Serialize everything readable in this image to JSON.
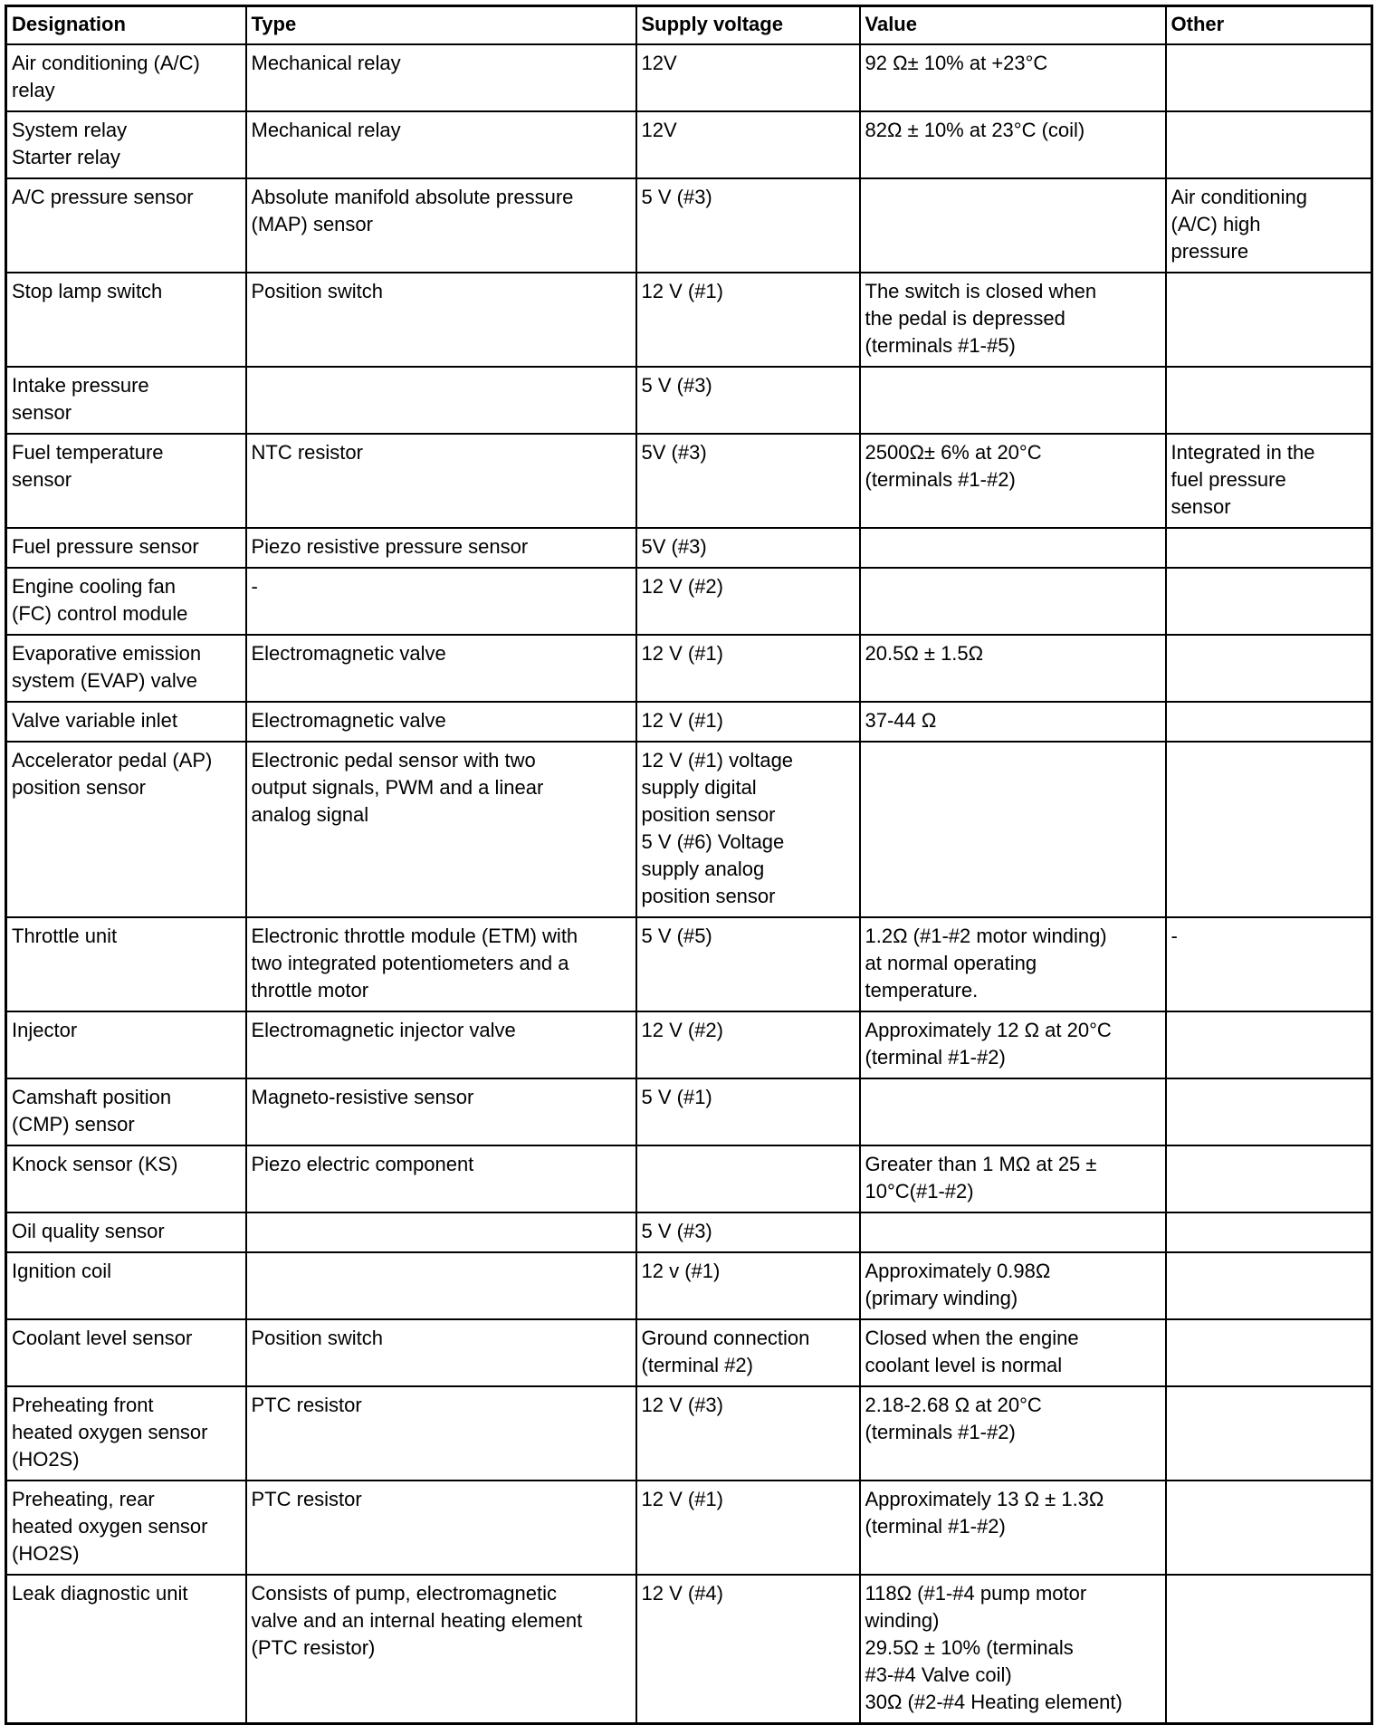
{
  "headers": [
    "Designation",
    "Type",
    "Supply voltage",
    "Value",
    "Other"
  ],
  "rows": [
    [
      "Air conditioning (A/C)\nrelay",
      "Mechanical relay",
      "12V",
      "92 Ω± 10% at +23°C",
      ""
    ],
    [
      "System relay\nStarter relay",
      "Mechanical relay",
      "12V",
      "82Ω ± 10% at 23°C (coil)",
      ""
    ],
    [
      "A/C pressure sensor",
      "Absolute manifold absolute pressure\n(MAP) sensor",
      "5 V (#3)",
      "",
      "Air conditioning\n(A/C) high\npressure"
    ],
    [
      "Stop lamp switch",
      "Position switch",
      "12 V (#1)",
      "The switch is closed when\nthe pedal is depressed\n(terminals #1-#5)",
      ""
    ],
    [
      "Intake pressure\nsensor",
      "",
      "5 V (#3)",
      "",
      ""
    ],
    [
      "Fuel temperature\nsensor",
      "NTC resistor",
      "5V (#3)",
      "2500Ω± 6% at 20°C\n(terminals #1-#2)",
      "Integrated in the\nfuel pressure\nsensor"
    ],
    [
      "Fuel pressure sensor",
      "Piezo resistive pressure sensor",
      "5V (#3)",
      "",
      ""
    ],
    [
      "Engine cooling fan\n(FC) control module",
      "-",
      "12 V (#2)",
      "",
      ""
    ],
    [
      "Evaporative emission\nsystem (EVAP) valve",
      "Electromagnetic valve",
      "12 V (#1)",
      "20.5Ω ± 1.5Ω",
      ""
    ],
    [
      "Valve variable inlet",
      "Electromagnetic valve",
      "12 V (#1)",
      "37-44 Ω",
      ""
    ],
    [
      "Accelerator pedal (AP)\nposition sensor",
      "Electronic pedal sensor with two\noutput signals, PWM and a linear\nanalog signal",
      "12 V (#1) voltage\nsupply digital\nposition sensor\n5 V (#6) Voltage\nsupply analog\nposition sensor",
      "",
      ""
    ],
    [
      "Throttle unit",
      "Electronic throttle module (ETM) with\ntwo integrated potentiometers and a\nthrottle motor",
      "5 V (#5)",
      "1.2Ω (#1-#2 motor winding)\nat normal operating\ntemperature.",
      "-"
    ],
    [
      "Injector",
      "Electromagnetic injector valve",
      "12 V (#2)",
      "Approximately 12 Ω at 20°C\n(terminal #1-#2)",
      ""
    ],
    [
      "Camshaft position\n(CMP) sensor",
      "Magneto-resistive sensor",
      "5 V (#1)",
      "",
      ""
    ],
    [
      "Knock sensor (KS)",
      "Piezo electric component",
      "",
      "Greater than 1 MΩ at 25 ±\n10°C(#1-#2)",
      ""
    ],
    [
      "Oil quality sensor",
      "",
      "5 V (#3)",
      "",
      ""
    ],
    [
      "Ignition coil",
      "",
      "12 v (#1)",
      "Approximately 0.98Ω\n(primary winding)",
      ""
    ],
    [
      "Coolant level sensor",
      "Position switch",
      "Ground connection\n(terminal #2)",
      "Closed when the engine\ncoolant level is normal",
      ""
    ],
    [
      "Preheating front\nheated oxygen sensor\n(HO2S)",
      "PTC resistor",
      "12 V (#3)",
      "2.18-2.68 Ω at 20°C\n(terminals #1-#2)",
      ""
    ],
    [
      "Preheating, rear\nheated oxygen sensor\n(HO2S)",
      "PTC resistor",
      "12 V (#1)",
      "Approximately 13 Ω ± 1.3Ω\n(terminal #1-#2)",
      ""
    ],
    [
      "Leak diagnostic unit",
      "Consists of pump, electromagnetic\nvalve and an internal heating element\n(PTC resistor)",
      "12 V (#4)",
      "118Ω (#1-#4 pump motor\nwinding)\n29.5Ω ± 10% (terminals\n#3-#4 Valve coil)\n30Ω (#2-#4 Heating element)",
      ""
    ]
  ]
}
